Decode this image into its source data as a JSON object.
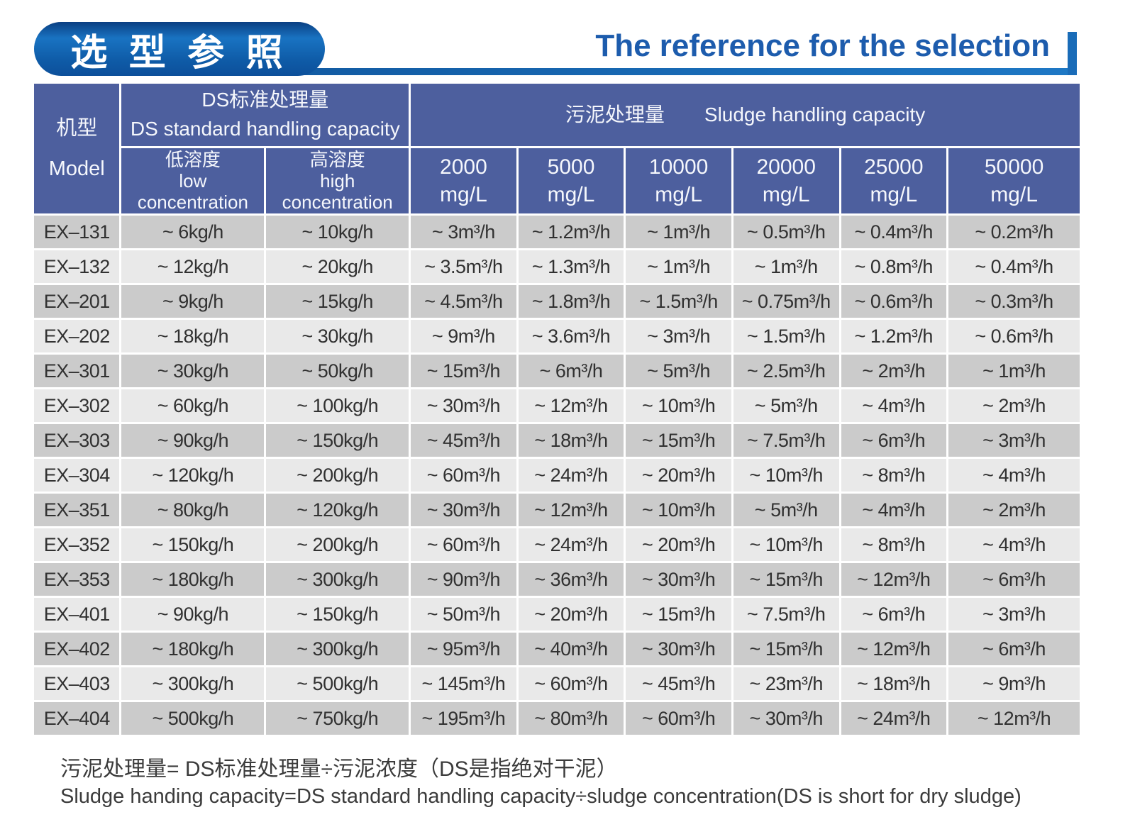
{
  "banner": {
    "title_cn": "选 型 参 照",
    "title_en": "The reference for the selection"
  },
  "colors": {
    "accent_blue": "#1a6cb8",
    "title_text_blue": "#1d5cad",
    "table_header_blue": "#4d5f9e",
    "row_dark_gray": "#cbcbcb",
    "row_light_gray": "#e9e9e9"
  },
  "table": {
    "header": {
      "model": "机型\nModel",
      "ds_group": "DS标准处理量\nDS standard handling capacity",
      "sludge_group": "污泥处理量　　Sludge handling capacity",
      "low": "低溶度\nlow\nconcentration",
      "high": "高溶度\nhigh\nconcentration",
      "mgl": [
        "2000\nmg/L",
        "5000\nmg/L",
        "10000\nmg/L",
        "20000\nmg/L",
        "25000\nmg/L",
        "50000\nmg/L"
      ]
    },
    "rows": [
      {
        "model": "EX–131",
        "values": [
          "~ 6kg/h",
          "~ 10kg/h",
          "~ 3m³/h",
          "~ 1.2m³/h",
          "~ 1m³/h",
          "~ 0.5m³/h",
          "~ 0.4m³/h",
          "~ 0.2m³/h"
        ]
      },
      {
        "model": "EX–132",
        "values": [
          "~ 12kg/h",
          "~ 20kg/h",
          "~ 3.5m³/h",
          "~ 1.3m³/h",
          "~ 1m³/h",
          "~ 1m³/h",
          "~ 0.8m³/h",
          "~ 0.4m³/h"
        ]
      },
      {
        "model": "EX–201",
        "values": [
          "~ 9kg/h",
          "~ 15kg/h",
          "~ 4.5m³/h",
          "~ 1.8m³/h",
          "~ 1.5m³/h",
          "~ 0.75m³/h",
          "~ 0.6m³/h",
          "~ 0.3m³/h"
        ]
      },
      {
        "model": "EX–202",
        "values": [
          "~ 18kg/h",
          "~ 30kg/h",
          "~ 9m³/h",
          "~ 3.6m³/h",
          "~ 3m³/h",
          "~ 1.5m³/h",
          "~ 1.2m³/h",
          "~ 0.6m³/h"
        ]
      },
      {
        "model": "EX–301",
        "values": [
          "~ 30kg/h",
          "~ 50kg/h",
          "~ 15m³/h",
          "~ 6m³/h",
          "~ 5m³/h",
          "~ 2.5m³/h",
          "~ 2m³/h",
          "~ 1m³/h"
        ]
      },
      {
        "model": "EX–302",
        "values": [
          "~ 60kg/h",
          "~ 100kg/h",
          "~ 30m³/h",
          "~ 12m³/h",
          "~ 10m³/h",
          "~ 5m³/h",
          "~ 4m³/h",
          "~ 2m³/h"
        ]
      },
      {
        "model": "EX–303",
        "values": [
          "~ 90kg/h",
          "~ 150kg/h",
          "~ 45m³/h",
          "~ 18m³/h",
          "~ 15m³/h",
          "~ 7.5m³/h",
          "~ 6m³/h",
          "~ 3m³/h"
        ]
      },
      {
        "model": "EX–304",
        "values": [
          "~ 120kg/h",
          "~ 200kg/h",
          "~ 60m³/h",
          "~ 24m³/h",
          "~ 20m³/h",
          "~ 10m³/h",
          "~ 8m³/h",
          "~ 4m³/h"
        ]
      },
      {
        "model": "EX–351",
        "values": [
          "~ 80kg/h",
          "~ 120kg/h",
          "~ 30m³/h",
          "~ 12m³/h",
          "~ 10m³/h",
          "~ 5m³/h",
          "~ 4m³/h",
          "~ 2m³/h"
        ]
      },
      {
        "model": "EX–352",
        "values": [
          "~ 150kg/h",
          "~ 200kg/h",
          "~ 60m³/h",
          "~ 24m³/h",
          "~ 20m³/h",
          "~ 10m³/h",
          "~ 8m³/h",
          "~ 4m³/h"
        ]
      },
      {
        "model": "EX–353",
        "values": [
          "~ 180kg/h",
          "~ 300kg/h",
          "~ 90m³/h",
          "~ 36m³/h",
          "~ 30m³/h",
          "~ 15m³/h",
          "~ 12m³/h",
          "~ 6m³/h"
        ]
      },
      {
        "model": "EX–401",
        "values": [
          "~ 90kg/h",
          "~ 150kg/h",
          "~ 50m³/h",
          "~ 20m³/h",
          "~ 15m³/h",
          "~ 7.5m³/h",
          "~ 6m³/h",
          "~ 3m³/h"
        ]
      },
      {
        "model": "EX–402",
        "values": [
          "~ 180kg/h",
          "~ 300kg/h",
          "~ 95m³/h",
          "~ 40m³/h",
          "~ 30m³/h",
          "~ 15m³/h",
          "~ 12m³/h",
          "~ 6m³/h"
        ]
      },
      {
        "model": "EX–403",
        "values": [
          "~ 300kg/h",
          "~ 500kg/h",
          "~ 145m³/h",
          "~ 60m³/h",
          "~ 45m³/h",
          "~ 23m³/h",
          "~ 18m³/h",
          "~ 9m³/h"
        ]
      },
      {
        "model": "EX–404",
        "values": [
          "~ 500kg/h",
          "~ 750kg/h",
          "~ 195m³/h",
          "~ 80m³/h",
          "~ 60m³/h",
          "~ 30m³/h",
          "~ 24m³/h",
          "~ 12m³/h"
        ]
      }
    ]
  },
  "footnote": {
    "line1_cn": "污泥处理量= DS标准处理量÷污泥浓度（DS是指绝对干泥）",
    "line2_en": "Sludge handing capacity=DS standard handling capacity÷sludge concentration(DS is short for dry sludge)"
  }
}
